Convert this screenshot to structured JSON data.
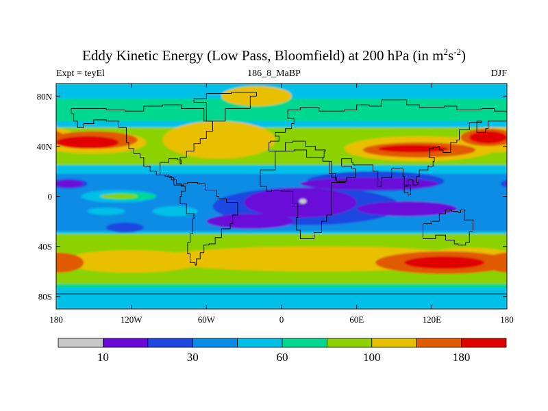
{
  "title": {
    "main": "Eddy Kinetic Energy (Low Pass, Bloomfield) at 200 hPa (in m",
    "sup1": "2",
    "mid": "s",
    "sup2": "-2",
    "end": ")"
  },
  "subtitle": {
    "left": "Expt = teyEl",
    "center": "186_8_MaBP",
    "right": "DJF"
  },
  "chart_data": {
    "type": "heatmap",
    "projection": "cylindrical-equidistant",
    "xlim": [
      -180,
      180
    ],
    "ylim": [
      -90,
      90
    ],
    "x_ticks": [
      {
        "value": -180,
        "label": "180"
      },
      {
        "value": -120,
        "label": "120W"
      },
      {
        "value": -60,
        "label": "60W"
      },
      {
        "value": 0,
        "label": "0"
      },
      {
        "value": 60,
        "label": "60E"
      },
      {
        "value": 120,
        "label": "120E"
      },
      {
        "value": 180,
        "label": "180"
      }
    ],
    "y_ticks": [
      {
        "value": 80,
        "label": "80N"
      },
      {
        "value": 40,
        "label": "40N"
      },
      {
        "value": 0,
        "label": "0"
      },
      {
        "value": -40,
        "label": "40S"
      },
      {
        "value": -80,
        "label": "80S"
      }
    ],
    "colorbar": {
      "colors": [
        "#c8c8c8",
        "#6a0ad8",
        "#1e46e0",
        "#0a8ce6",
        "#00c0e8",
        "#00d890",
        "#8cd200",
        "#e8c000",
        "#e05a00",
        "#e00000"
      ],
      "labels": [
        {
          "value": "10",
          "after_box": 1
        },
        {
          "value": "30",
          "after_box": 3
        },
        {
          "value": "60",
          "after_box": 5
        },
        {
          "value": "100",
          "after_box": 7
        },
        {
          "value": "180",
          "after_box": 9
        }
      ]
    },
    "background_level": 4,
    "regions": [
      {
        "level": 5,
        "shape": "band",
        "lat_min": 60,
        "lat_max": 78
      },
      {
        "level": 5,
        "shape": "band",
        "lat_min": -73,
        "lat_max": -62
      },
      {
        "level": 6,
        "shape": "band",
        "lat_min": 25,
        "lat_max": 55
      },
      {
        "level": 6,
        "shape": "band",
        "lat_min": -70,
        "lat_max": -30
      },
      {
        "level": 5,
        "shape": "ellipse",
        "lon": -90,
        "lat": 5,
        "rx": 40,
        "ry": 5
      },
      {
        "level": 6,
        "shape": "ellipse",
        "lon": -125,
        "lat": 0,
        "rx": 18,
        "ry": 3
      },
      {
        "level": 6,
        "shape": "ellipse",
        "lon": -90,
        "lat": -10,
        "rx": 10,
        "ry": 3
      },
      {
        "level": 7,
        "shape": "ellipse",
        "lon": -150,
        "lat": 43,
        "rx": 42,
        "ry": 9
      },
      {
        "level": 7,
        "shape": "ellipse",
        "lon": -50,
        "lat": 45,
        "rx": 45,
        "ry": 15
      },
      {
        "level": 7,
        "shape": "ellipse",
        "lon": 110,
        "lat": 38,
        "rx": 60,
        "ry": 10
      },
      {
        "level": 7,
        "shape": "ellipse",
        "lon": 170,
        "lat": 45,
        "rx": 30,
        "ry": 10
      },
      {
        "level": 7,
        "shape": "ellipse",
        "lon": -20,
        "lat": 80,
        "rx": 28,
        "ry": 8
      },
      {
        "level": 7,
        "shape": "ellipse",
        "lon": 30,
        "lat": -50,
        "rx": 130,
        "ry": 10
      },
      {
        "level": 7,
        "shape": "ellipse",
        "lon": -120,
        "lat": -52,
        "rx": 55,
        "ry": 9
      },
      {
        "level": 7,
        "shape": "ellipse",
        "lon": 150,
        "lat": -50,
        "rx": 40,
        "ry": 9
      },
      {
        "level": 8,
        "shape": "ellipse",
        "lon": -150,
        "lat": 45,
        "rx": 35,
        "ry": 7
      },
      {
        "level": 8,
        "shape": "ellipse",
        "lon": 110,
        "lat": 37,
        "rx": 45,
        "ry": 6
      },
      {
        "level": 8,
        "shape": "ellipse",
        "lon": 165,
        "lat": 47,
        "rx": 22,
        "ry": 7
      },
      {
        "level": 8,
        "shape": "ellipse",
        "lon": 130,
        "lat": -53,
        "rx": 55,
        "ry": 9
      },
      {
        "level": 8,
        "shape": "ellipse",
        "lon": -178,
        "lat": -53,
        "rx": 20,
        "ry": 8
      },
      {
        "level": 9,
        "shape": "ellipse",
        "lon": -155,
        "lat": 43,
        "rx": 25,
        "ry": 5
      },
      {
        "level": 9,
        "shape": "ellipse",
        "lon": 105,
        "lat": 38,
        "rx": 28,
        "ry": 3
      },
      {
        "level": 9,
        "shape": "ellipse",
        "lon": 165,
        "lat": 47,
        "rx": 15,
        "ry": 5
      },
      {
        "level": 9,
        "shape": "ellipse",
        "lon": 130,
        "lat": -53,
        "rx": 32,
        "ry": 5
      },
      {
        "level": 3,
        "shape": "band",
        "lat_min": -28,
        "lat_max": 18
      },
      {
        "level": 4,
        "shape": "ellipse",
        "lon": -130,
        "lat": 0,
        "rx": 30,
        "ry": 5
      },
      {
        "level": 4,
        "shape": "ellipse",
        "lon": -85,
        "lat": -12,
        "rx": 18,
        "ry": 4
      },
      {
        "level": 5,
        "shape": "ellipse",
        "lon": -120,
        "lat": 0,
        "rx": 20,
        "ry": 3
      },
      {
        "level": 6,
        "shape": "ellipse",
        "lon": -130,
        "lat": 0,
        "rx": 15,
        "ry": 2
      },
      {
        "level": 4,
        "shape": "ellipse",
        "lon": -140,
        "lat": -12,
        "rx": 15,
        "ry": 3
      },
      {
        "level": 2,
        "shape": "ellipse",
        "lon": 20,
        "lat": -8,
        "rx": 75,
        "ry": 15
      },
      {
        "level": 2,
        "shape": "ellipse",
        "lon": 75,
        "lat": 12,
        "rx": 55,
        "ry": 8
      },
      {
        "level": 2,
        "shape": "ellipse",
        "lon": -170,
        "lat": 10,
        "rx": 15,
        "ry": 4
      },
      {
        "level": 2,
        "shape": "ellipse",
        "lon": -125,
        "lat": -25,
        "rx": 15,
        "ry": 4
      },
      {
        "level": 1,
        "shape": "ellipse",
        "lon": 15,
        "lat": -5,
        "rx": 45,
        "ry": 12
      },
      {
        "level": 1,
        "shape": "ellipse",
        "lon": 100,
        "lat": -10,
        "rx": 40,
        "ry": 6
      },
      {
        "level": 1,
        "shape": "ellipse",
        "lon": -25,
        "lat": -20,
        "rx": 35,
        "ry": 6
      },
      {
        "level": 1,
        "shape": "ellipse",
        "lon": 70,
        "lat": 10,
        "rx": 55,
        "ry": 5
      },
      {
        "level": 1,
        "shape": "ellipse",
        "lon": -170,
        "lat": 10,
        "rx": 12,
        "ry": 3
      },
      {
        "level": 0,
        "shape": "ellipse",
        "lon": 17,
        "lat": -4,
        "rx": 3,
        "ry": 2
      }
    ],
    "coastlines": [
      [
        [
          -168,
          66
        ],
        [
          -160,
          70
        ],
        [
          -140,
          70
        ],
        [
          -125,
          69
        ],
        [
          -110,
          68
        ],
        [
          -95,
          72
        ],
        [
          -80,
          73
        ],
        [
          -62,
          70
        ],
        [
          -55,
          60
        ],
        [
          -60,
          52
        ],
        [
          -65,
          46
        ],
        [
          -70,
          42
        ],
        [
          -76,
          36
        ],
        [
          -81,
          31
        ],
        [
          -80,
          26
        ],
        [
          -83,
          29
        ],
        [
          -90,
          30
        ],
        [
          -97,
          27
        ],
        [
          -97,
          20
        ],
        [
          -90,
          17
        ],
        [
          -86,
          15
        ],
        [
          -80,
          9
        ],
        [
          -78,
          8
        ],
        [
          -80,
          9
        ],
        [
          -84,
          10
        ],
        [
          -88,
          13
        ],
        [
          -93,
          16
        ],
        [
          -100,
          17
        ],
        [
          -105,
          20
        ],
        [
          -110,
          24
        ],
        [
          -113,
          31
        ],
        [
          -118,
          34
        ],
        [
          -122,
          38
        ],
        [
          -124,
          43
        ],
        [
          -124,
          49
        ],
        [
          -130,
          55
        ],
        [
          -140,
          60
        ],
        [
          -150,
          61
        ],
        [
          -158,
          58
        ],
        [
          -163,
          55
        ],
        [
          -166,
          60
        ],
        [
          -168,
          66
        ]
      ],
      [
        [
          -78,
          8
        ],
        [
          -75,
          10
        ],
        [
          -67,
          11
        ],
        [
          -61,
          10
        ],
        [
          -52,
          5
        ],
        [
          -50,
          0
        ],
        [
          -44,
          -2
        ],
        [
          -35,
          -5
        ],
        [
          -35,
          -10
        ],
        [
          -39,
          -15
        ],
        [
          -41,
          -22
        ],
        [
          -48,
          -26
        ],
        [
          -53,
          -33
        ],
        [
          -58,
          -38
        ],
        [
          -62,
          -39
        ],
        [
          -65,
          -45
        ],
        [
          -68,
          -50
        ],
        [
          -69,
          -55
        ],
        [
          -73,
          -53
        ],
        [
          -75,
          -46
        ],
        [
          -73,
          -37
        ],
        [
          -71,
          -30
        ],
        [
          -70,
          -18
        ],
        [
          -76,
          -14
        ],
        [
          -81,
          -6
        ],
        [
          -80,
          0
        ],
        [
          -77,
          4
        ],
        [
          -78,
          8
        ]
      ],
      [
        [
          -55,
          60
        ],
        [
          -45,
          60
        ],
        [
          -25,
          70
        ],
        [
          -20,
          80
        ],
        [
          -40,
          83
        ],
        [
          -60,
          82
        ],
        [
          -70,
          78
        ],
        [
          -60,
          75
        ],
        [
          -55,
          60
        ]
      ],
      [
        [
          -10,
          36
        ],
        [
          -9,
          43
        ],
        [
          -2,
          44
        ],
        [
          -5,
          48
        ],
        [
          3,
          51
        ],
        [
          8,
          54
        ],
        [
          10,
          58
        ],
        [
          5,
          62
        ],
        [
          15,
          69
        ],
        [
          30,
          71
        ],
        [
          50,
          68
        ],
        [
          60,
          69
        ],
        [
          70,
          73
        ],
        [
          80,
          72
        ],
        [
          100,
          77
        ],
        [
          110,
          73
        ],
        [
          130,
          71
        ],
        [
          140,
          72
        ],
        [
          160,
          69
        ],
        [
          170,
          70
        ],
        [
          180,
          68
        ]
      ],
      [
        [
          180,
          62
        ],
        [
          165,
          60
        ],
        [
          163,
          54
        ],
        [
          156,
          51
        ],
        [
          160,
          60
        ],
        [
          150,
          59
        ],
        [
          142,
          53
        ],
        [
          140,
          45
        ],
        [
          135,
          43
        ],
        [
          129,
          35
        ],
        [
          126,
          37
        ],
        [
          125,
          40
        ],
        [
          121,
          39
        ],
        [
          118,
          38
        ],
        [
          122,
          31
        ],
        [
          121,
          28
        ],
        [
          117,
          24
        ],
        [
          110,
          21
        ],
        [
          108,
          16
        ],
        [
          109,
          11
        ],
        [
          105,
          9
        ],
        [
          101,
          13
        ],
        [
          98,
          8
        ],
        [
          101,
          3
        ],
        [
          103,
          1
        ],
        [
          98,
          9
        ],
        [
          97,
          16
        ],
        [
          92,
          22
        ],
        [
          88,
          22
        ],
        [
          80,
          15
        ],
        [
          77,
          8
        ],
        [
          73,
          20
        ],
        [
          67,
          25
        ],
        [
          57,
          25
        ],
        [
          56,
          27
        ],
        [
          48,
          30
        ],
        [
          51,
          24
        ],
        [
          56,
          24
        ],
        [
          59,
          22
        ],
        [
          52,
          15
        ],
        [
          44,
          12
        ],
        [
          40,
          15
        ],
        [
          33,
          28
        ],
        [
          34,
          31
        ],
        [
          35,
          36
        ],
        [
          27,
          37
        ],
        [
          23,
          40
        ],
        [
          19,
          40
        ],
        [
          12,
          44
        ],
        [
          9,
          44
        ],
        [
          3,
          43
        ],
        [
          -5,
          36
        ],
        [
          -10,
          36
        ]
      ],
      [
        [
          -5,
          36
        ],
        [
          -17,
          21
        ],
        [
          -17,
          14
        ],
        [
          -12,
          8
        ],
        [
          -8,
          4
        ],
        [
          0,
          5
        ],
        [
          5,
          4
        ],
        [
          9,
          4
        ],
        [
          9,
          -1
        ],
        [
          13,
          -6
        ],
        [
          12,
          -17
        ],
        [
          15,
          -27
        ],
        [
          18,
          -34
        ],
        [
          26,
          -34
        ],
        [
          32,
          -29
        ],
        [
          36,
          -20
        ],
        [
          40,
          -15
        ],
        [
          40,
          -10
        ],
        [
          40,
          -3
        ],
        [
          51,
          11
        ],
        [
          44,
          12
        ],
        [
          43,
          13
        ],
        [
          38,
          18
        ],
        [
          33,
          28
        ],
        [
          31,
          31
        ],
        [
          20,
          31
        ],
        [
          10,
          37
        ],
        [
          0,
          36
        ],
        [
          -5,
          36
        ]
      ],
      [
        [
          113,
          -22
        ],
        [
          115,
          -34
        ],
        [
          123,
          -34
        ],
        [
          131,
          -31
        ],
        [
          138,
          -35
        ],
        [
          141,
          -38
        ],
        [
          147,
          -39
        ],
        [
          150,
          -37
        ],
        [
          153,
          -28
        ],
        [
          153,
          -25
        ],
        [
          146,
          -19
        ],
        [
          143,
          -11
        ],
        [
          141,
          -13
        ],
        [
          136,
          -12
        ],
        [
          131,
          -11
        ],
        [
          126,
          -14
        ],
        [
          120,
          -20
        ],
        [
          113,
          -22
        ]
      ],
      [
        [
          -180,
          -90
        ],
        [
          -180,
          -78
        ],
        [
          180,
          -78
        ],
        [
          180,
          -90
        ]
      ]
    ]
  }
}
